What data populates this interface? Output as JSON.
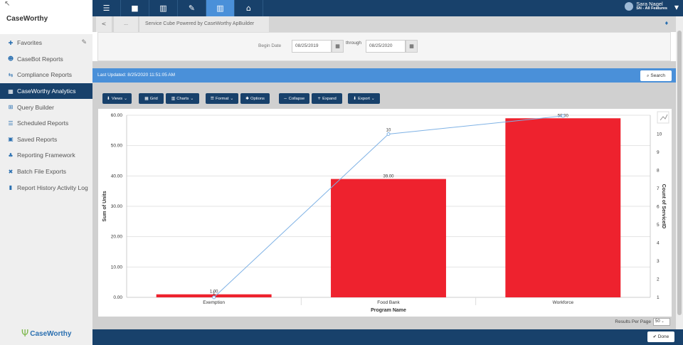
{
  "app": {
    "brand": "CaseWorthy",
    "footer_logo": "CaseWorthy"
  },
  "sidebar": {
    "items": [
      {
        "label": "Favorites",
        "icon": "pin-icon"
      },
      {
        "label": "CaseBot Reports",
        "icon": "robot-icon"
      },
      {
        "label": "Compliance Reports",
        "icon": "exchange-icon"
      },
      {
        "label": "CaseWorthy Analytics",
        "icon": "table-icon",
        "active": true
      },
      {
        "label": "Query Builder",
        "icon": "sitemap-icon"
      },
      {
        "label": "Scheduled Reports",
        "icon": "list-icon"
      },
      {
        "label": "Saved Reports",
        "icon": "save-icon"
      },
      {
        "label": "Reporting Framework",
        "icon": "hierarchy-icon"
      },
      {
        "label": "Batch File Exports",
        "icon": "compress-icon"
      },
      {
        "label": "Report History Activity Log",
        "icon": "book-icon"
      }
    ]
  },
  "user": {
    "name": "Sara Nagel",
    "role": "SN - All Features"
  },
  "breadcrumb": {
    "back": "<",
    "dots": "...",
    "current": "Service Cube Powered by CaseWorthy ApBuilder"
  },
  "filters": {
    "begin_label": "Begin Date",
    "begin_value": "08/25/2019",
    "through_label": "through",
    "end_value": "08/25/2020"
  },
  "status": {
    "last_updated": "Last Updated: 8/25/2020 11:51:05 AM"
  },
  "search_label": "Search",
  "toolbar": {
    "views": "Views",
    "grid": "Grid",
    "charts": "Charts",
    "format": "Format",
    "options": "Options",
    "collapse": "Collapse",
    "expand": "Expand",
    "export": "Export"
  },
  "pagination": {
    "label": "Results Per Page",
    "value": "50"
  },
  "done_label": "Done",
  "colors": {
    "navy": "#18416b",
    "accent": "#4a90d9",
    "bar": "#ee222e",
    "line": "#7fb2e5"
  },
  "chart_data": {
    "type": "bar",
    "categories": [
      "Exemption",
      "Food Bank",
      "Workforce"
    ],
    "xlabel": "Program Name",
    "ylabel": "Sum of Units",
    "y2label": "Count of ServiceID",
    "ylim": [
      0,
      60
    ],
    "y2lim": [
      1,
      11
    ],
    "yticks": [
      "60.00",
      "50.00",
      "40.00",
      "30.00",
      "20.00",
      "10.00",
      "0.00"
    ],
    "y2ticks": [
      "10",
      "9",
      "8",
      "7",
      "6",
      "5",
      "4",
      "3",
      "2",
      "1"
    ],
    "series": [
      {
        "name": "Sum of Units",
        "type": "bar",
        "values": [
          1.0,
          39.0,
          59.0
        ],
        "labels": [
          "1.00",
          "39.00",
          "59.00"
        ]
      },
      {
        "name": "Count of ServiceID",
        "type": "line",
        "values": [
          1,
          10,
          11
        ],
        "labels": [
          "1",
          "10",
          ""
        ]
      }
    ],
    "grid": true
  }
}
